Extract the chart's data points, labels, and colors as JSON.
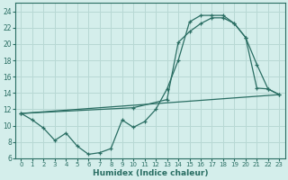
{
  "xlabel": "Humidex (Indice chaleur)",
  "bg_color": "#d4eeeb",
  "grid_color": "#b8d8d4",
  "line_color": "#2a6e63",
  "spine_color": "#2a6e63",
  "xlim": [
    -0.5,
    23.5
  ],
  "ylim": [
    6,
    25
  ],
  "xticks": [
    0,
    1,
    2,
    3,
    4,
    5,
    6,
    7,
    8,
    9,
    10,
    11,
    12,
    13,
    14,
    15,
    16,
    17,
    18,
    19,
    20,
    21,
    22,
    23
  ],
  "yticks": [
    6,
    8,
    10,
    12,
    14,
    16,
    18,
    20,
    22,
    24
  ],
  "series1_x": [
    0,
    1,
    2,
    3,
    4,
    5,
    6,
    7,
    8,
    9,
    10,
    11,
    12,
    13,
    14,
    15,
    16,
    17,
    18,
    19,
    20,
    21,
    22,
    23
  ],
  "series1_y": [
    11.5,
    10.7,
    9.7,
    8.2,
    9.1,
    7.5,
    6.5,
    6.7,
    7.2,
    10.7,
    9.8,
    10.5,
    12.0,
    14.5,
    18.0,
    22.7,
    23.5,
    23.5,
    23.5,
    22.5,
    20.8,
    17.5,
    14.5,
    13.8
  ],
  "series2_x": [
    0,
    10,
    13,
    14,
    15,
    16,
    17,
    18,
    19,
    20,
    21,
    22,
    23
  ],
  "series2_y": [
    11.5,
    12.2,
    13.2,
    20.2,
    21.5,
    22.5,
    23.2,
    23.2,
    22.5,
    20.8,
    14.6,
    14.5,
    13.8
  ],
  "series3_x": [
    0,
    23
  ],
  "series3_y": [
    11.5,
    13.8
  ]
}
